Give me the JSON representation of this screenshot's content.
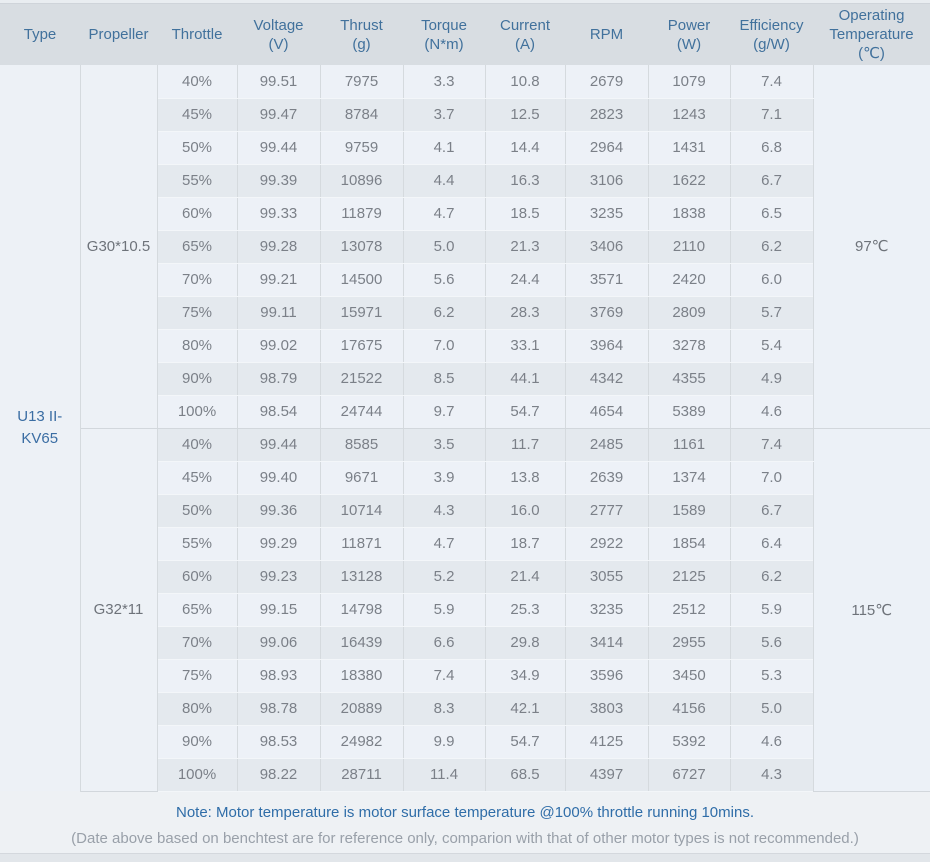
{
  "chart_data": {
    "type": "table",
    "columns": [
      {
        "label": "Type",
        "unit": ""
      },
      {
        "label": "Propeller",
        "unit": ""
      },
      {
        "label": "Throttle",
        "unit": ""
      },
      {
        "label": "Voltage",
        "unit": "(V)"
      },
      {
        "label": "Thrust",
        "unit": "(g)"
      },
      {
        "label": "Torque",
        "unit": "(N*m)"
      },
      {
        "label": "Current",
        "unit": "(A)"
      },
      {
        "label": "RPM",
        "unit": ""
      },
      {
        "label": "Power",
        "unit": "(W)"
      },
      {
        "label": "Efficiency",
        "unit": "(g/W)"
      },
      {
        "label": "Operating Temperature",
        "unit": "(℃)"
      }
    ],
    "type_value": "U13 II-KV65",
    "groups": [
      {
        "propeller": "G30*10.5",
        "temperature": "97℃",
        "rows": [
          {
            "throttle": "40%",
            "voltage": "99.51",
            "thrust": "7975",
            "torque": "3.3",
            "current": "10.8",
            "rpm": "2679",
            "power": "1079",
            "efficiency": "7.4"
          },
          {
            "throttle": "45%",
            "voltage": "99.47",
            "thrust": "8784",
            "torque": "3.7",
            "current": "12.5",
            "rpm": "2823",
            "power": "1243",
            "efficiency": "7.1"
          },
          {
            "throttle": "50%",
            "voltage": "99.44",
            "thrust": "9759",
            "torque": "4.1",
            "current": "14.4",
            "rpm": "2964",
            "power": "1431",
            "efficiency": "6.8"
          },
          {
            "throttle": "55%",
            "voltage": "99.39",
            "thrust": "10896",
            "torque": "4.4",
            "current": "16.3",
            "rpm": "3106",
            "power": "1622",
            "efficiency": "6.7"
          },
          {
            "throttle": "60%",
            "voltage": "99.33",
            "thrust": "11879",
            "torque": "4.7",
            "current": "18.5",
            "rpm": "3235",
            "power": "1838",
            "efficiency": "6.5"
          },
          {
            "throttle": "65%",
            "voltage": "99.28",
            "thrust": "13078",
            "torque": "5.0",
            "current": "21.3",
            "rpm": "3406",
            "power": "2110",
            "efficiency": "6.2"
          },
          {
            "throttle": "70%",
            "voltage": "99.21",
            "thrust": "14500",
            "torque": "5.6",
            "current": "24.4",
            "rpm": "3571",
            "power": "2420",
            "efficiency": "6.0"
          },
          {
            "throttle": "75%",
            "voltage": "99.11",
            "thrust": "15971",
            "torque": "6.2",
            "current": "28.3",
            "rpm": "3769",
            "power": "2809",
            "efficiency": "5.7"
          },
          {
            "throttle": "80%",
            "voltage": "99.02",
            "thrust": "17675",
            "torque": "7.0",
            "current": "33.1",
            "rpm": "3964",
            "power": "3278",
            "efficiency": "5.4"
          },
          {
            "throttle": "90%",
            "voltage": "98.79",
            "thrust": "21522",
            "torque": "8.5",
            "current": "44.1",
            "rpm": "4342",
            "power": "4355",
            "efficiency": "4.9"
          },
          {
            "throttle": "100%",
            "voltage": "98.54",
            "thrust": "24744",
            "torque": "9.7",
            "current": "54.7",
            "rpm": "4654",
            "power": "5389",
            "efficiency": "4.6"
          }
        ]
      },
      {
        "propeller": "G32*11",
        "temperature": "115℃",
        "rows": [
          {
            "throttle": "40%",
            "voltage": "99.44",
            "thrust": "8585",
            "torque": "3.5",
            "current": "11.7",
            "rpm": "2485",
            "power": "1161",
            "efficiency": "7.4"
          },
          {
            "throttle": "45%",
            "voltage": "99.40",
            "thrust": "9671",
            "torque": "3.9",
            "current": "13.8",
            "rpm": "2639",
            "power": "1374",
            "efficiency": "7.0"
          },
          {
            "throttle": "50%",
            "voltage": "99.36",
            "thrust": "10714",
            "torque": "4.3",
            "current": "16.0",
            "rpm": "2777",
            "power": "1589",
            "efficiency": "6.7"
          },
          {
            "throttle": "55%",
            "voltage": "99.29",
            "thrust": "11871",
            "torque": "4.7",
            "current": "18.7",
            "rpm": "2922",
            "power": "1854",
            "efficiency": "6.4"
          },
          {
            "throttle": "60%",
            "voltage": "99.23",
            "thrust": "13128",
            "torque": "5.2",
            "current": "21.4",
            "rpm": "3055",
            "power": "2125",
            "efficiency": "6.2"
          },
          {
            "throttle": "65%",
            "voltage": "99.15",
            "thrust": "14798",
            "torque": "5.9",
            "current": "25.3",
            "rpm": "3235",
            "power": "2512",
            "efficiency": "5.9"
          },
          {
            "throttle": "70%",
            "voltage": "99.06",
            "thrust": "16439",
            "torque": "6.6",
            "current": "29.8",
            "rpm": "3414",
            "power": "2955",
            "efficiency": "5.6"
          },
          {
            "throttle": "75%",
            "voltage": "98.93",
            "thrust": "18380",
            "torque": "7.4",
            "current": "34.9",
            "rpm": "3596",
            "power": "3450",
            "efficiency": "5.3"
          },
          {
            "throttle": "80%",
            "voltage": "98.78",
            "thrust": "20889",
            "torque": "8.3",
            "current": "42.1",
            "rpm": "3803",
            "power": "4156",
            "efficiency": "5.0"
          },
          {
            "throttle": "90%",
            "voltage": "98.53",
            "thrust": "24982",
            "torque": "9.9",
            "current": "54.7",
            "rpm": "4125",
            "power": "5392",
            "efficiency": "4.6"
          },
          {
            "throttle": "100%",
            "voltage": "98.22",
            "thrust": "28711",
            "torque": "11.4",
            "current": "68.5",
            "rpm": "4397",
            "power": "6727",
            "efficiency": "4.3"
          }
        ]
      }
    ]
  },
  "note": {
    "line1": "Note: Motor temperature is motor surface temperature @100% throttle running 10mins.",
    "line2": "(Date above based on benchtest are for reference only, comparion with that of other motor types is not recommended.)"
  },
  "colors": {
    "header_bg": "#d8dde2",
    "header_text": "#41719c",
    "type_text": "#3a6da3",
    "row_odd_bg": "#edf1f7",
    "row_even_bg": "#e4e9ee",
    "data_text": "#7b8088",
    "note_primary": "#2f6da8",
    "note_secondary": "#99a0a9"
  }
}
